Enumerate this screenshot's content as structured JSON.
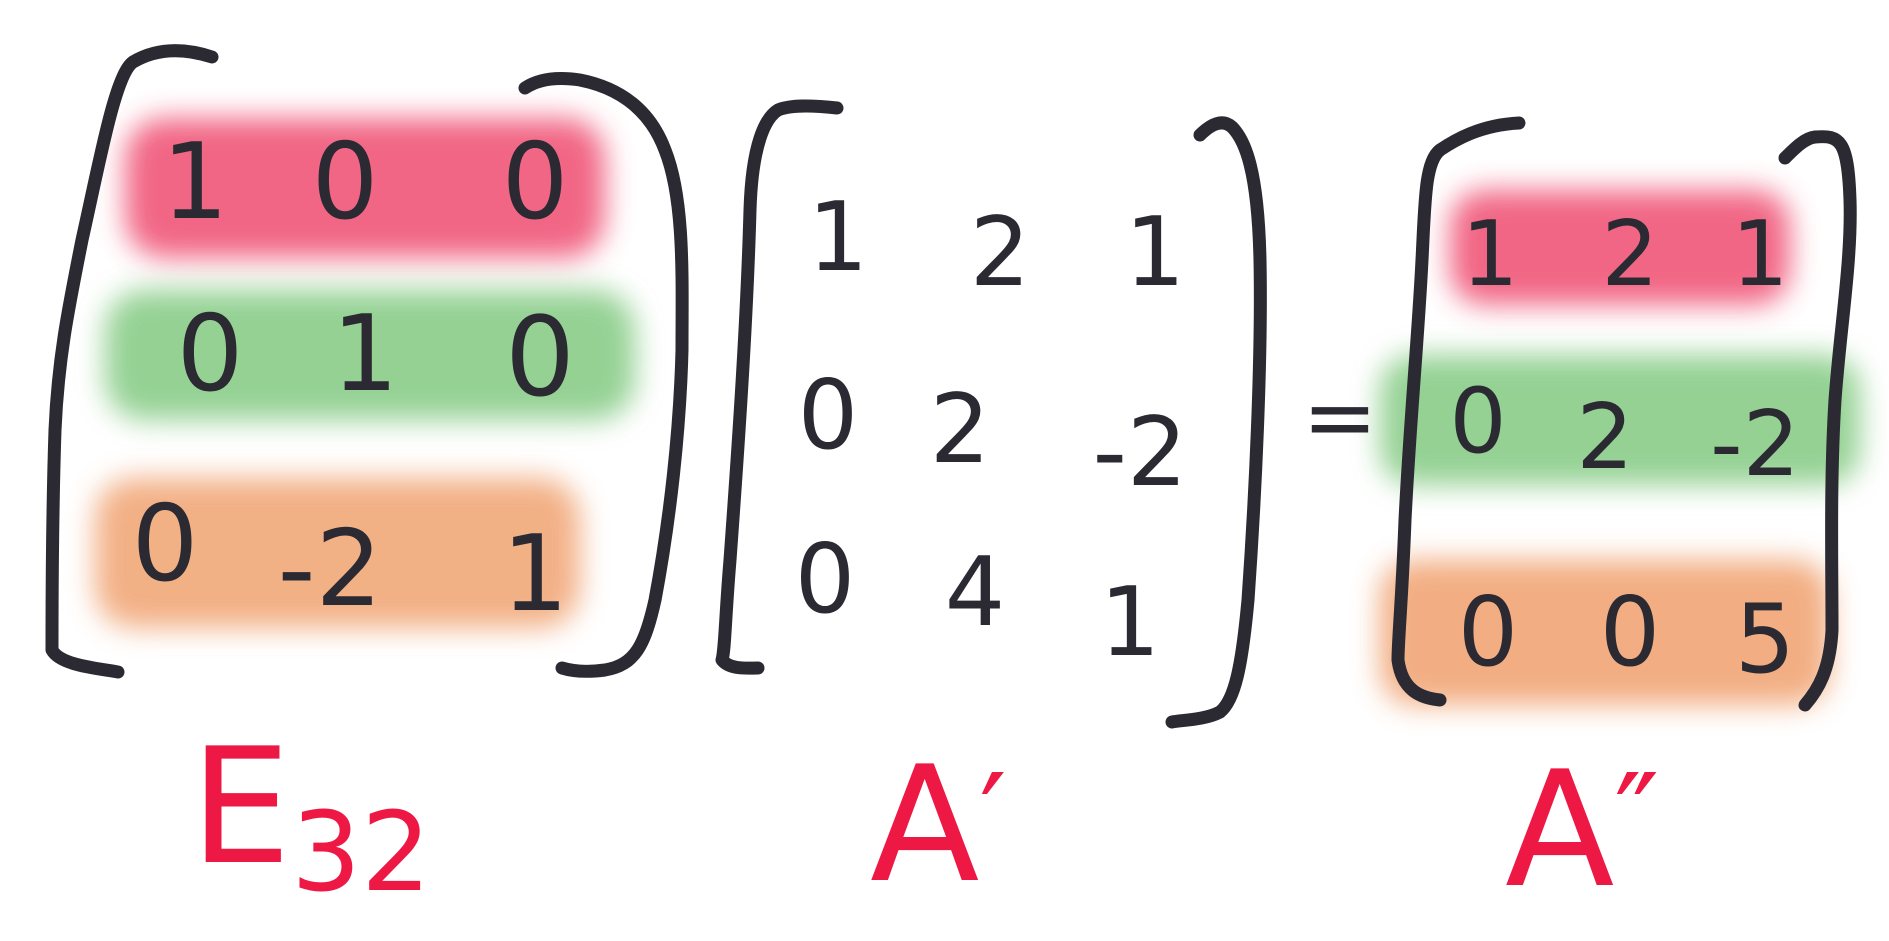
{
  "colors": {
    "ink": "#2b2a33",
    "label": "#ee1845",
    "row1_highlight": "#ee3f66",
    "row2_highlight": "#6cc06a",
    "row3_highlight": "#ef9a63"
  },
  "matrices": [
    {
      "id": "e32",
      "label_main": "E",
      "label_sub": "32",
      "rows": [
        [
          "1",
          "0",
          "0"
        ],
        [
          "0",
          "1",
          "0"
        ],
        [
          "0",
          "-2",
          "1"
        ]
      ]
    },
    {
      "id": "a-prime",
      "label_main": "A",
      "label_sup": "′",
      "rows": [
        [
          "1",
          "2",
          "1"
        ],
        [
          "0",
          "2",
          "-2"
        ],
        [
          "0",
          "4",
          "1"
        ]
      ]
    },
    {
      "id": "a-double-prime",
      "label_main": "A",
      "label_sup": "″",
      "rows": [
        [
          "1",
          "2",
          "1"
        ],
        [
          "0",
          "2",
          "-2"
        ],
        [
          "0",
          "0",
          "5"
        ]
      ]
    }
  ],
  "equals_sign": "="
}
